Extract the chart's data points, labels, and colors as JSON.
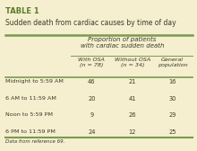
{
  "title_bold": "TABLE 1",
  "title_main": "Sudden death from cardiac causes by time of day",
  "header_group": "Proportion of patients\nwith cardiac sudden death",
  "col_headers": [
    "With OSA\n(n = 78)",
    "Without OSA\n(n = 34)",
    "General\npopulation"
  ],
  "row_labels": [
    "Midnight to 5:59 AM",
    "6 AM to 11:59 AM",
    "Noon to 5:59 PM",
    "6 PM to 11:59 PM"
  ],
  "data": [
    [
      46,
      21,
      16
    ],
    [
      20,
      41,
      30
    ],
    [
      9,
      26,
      29
    ],
    [
      24,
      12,
      25
    ]
  ],
  "footnote": "Data from reference 69.",
  "bg_color": "#f5efcf",
  "title_color": "#5b7b2a",
  "text_color": "#3a3a2a",
  "line_color": "#7a9a50"
}
